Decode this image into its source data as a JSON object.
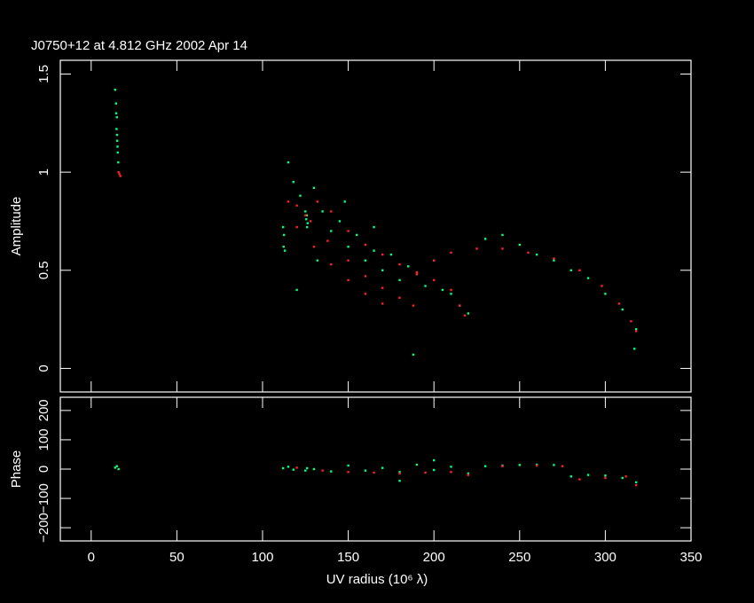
{
  "chart_data": [
    {
      "type": "scatter",
      "title": "J0750+12 at 4.812 GHz 2002 Apr 14",
      "y_label": "Amplitude",
      "ylim": [
        -0.12,
        1.57
      ],
      "yticks": [
        0,
        0.5,
        1,
        1.5
      ],
      "series": [
        {
          "color": "#00ff80",
          "x": [
            14,
            14.5,
            15,
            14.8,
            15.2,
            15.5,
            15.8,
            14.6,
            15.1,
            15.4,
            112,
            112.5,
            112.3,
            113,
            125,
            125.5,
            126,
            125.8,
            126.3,
            115,
            118,
            122,
            130,
            135,
            140,
            145,
            150,
            155,
            160,
            165,
            170,
            175,
            180,
            185,
            190,
            195,
            200,
            205,
            210,
            215,
            220,
            230,
            240,
            250,
            260,
            270,
            280,
            290,
            300,
            310,
            318,
            317,
            188,
            120,
            132,
            148,
            165
          ],
          "values": [
            1.42,
            1.35,
            1.28,
            1.22,
            1.16,
            1.1,
            1.05,
            1.3,
            1.19,
            1.13,
            0.72,
            0.68,
            0.62,
            0.6,
            0.8,
            0.76,
            0.72,
            0.78,
            0.74,
            1.05,
            0.95,
            0.88,
            0.92,
            0.8,
            0.7,
            0.75,
            0.62,
            0.68,
            0.55,
            0.6,
            0.5,
            0.58,
            0.45,
            0.52,
            0.48,
            0.42,
            0.55,
            0.4,
            0.38,
            0.32,
            0.28,
            0.66,
            0.68,
            0.63,
            0.58,
            0.55,
            0.5,
            0.46,
            0.38,
            0.3,
            0.2,
            0.1,
            0.07,
            0.4,
            0.55,
            0.85,
            0.72
          ]
        },
        {
          "color": "#ff2020",
          "x": [
            16,
            16.5,
            17,
            115,
            120,
            128,
            138,
            150,
            160,
            170,
            180,
            188,
            125,
            132,
            140,
            150,
            160,
            170,
            180,
            190,
            200,
            210,
            215,
            218,
            190,
            200,
            210,
            225,
            240,
            255,
            270,
            285,
            298,
            308,
            315,
            318,
            130,
            140,
            150,
            160,
            170,
            120
          ],
          "values": [
            1.0,
            0.99,
            0.98,
            0.85,
            0.83,
            0.75,
            0.65,
            0.55,
            0.47,
            0.41,
            0.36,
            0.32,
            0.78,
            0.85,
            0.8,
            0.7,
            0.63,
            0.58,
            0.53,
            0.49,
            0.45,
            0.4,
            0.32,
            0.27,
            0.48,
            0.55,
            0.59,
            0.61,
            0.61,
            0.59,
            0.56,
            0.5,
            0.42,
            0.33,
            0.24,
            0.19,
            0.62,
            0.53,
            0.45,
            0.38,
            0.33,
            0.72
          ]
        }
      ]
    },
    {
      "type": "scatter",
      "y_label": "Phase",
      "x_label": "UV radius  (10⁶ λ)",
      "xlim": [
        -18,
        350
      ],
      "xticks": [
        0,
        50,
        100,
        150,
        200,
        250,
        300,
        350
      ],
      "ylim": [
        -245,
        245
      ],
      "yticks": [
        {
          "value": -200,
          "label": "−200"
        },
        {
          "value": -100,
          "label": "−100"
        },
        0,
        100,
        200
      ],
      "series": [
        {
          "color": "#00ff80",
          "x": [
            14,
            15,
            16,
            112,
            115,
            118,
            125,
            126,
            130,
            140,
            150,
            160,
            170,
            180,
            190,
            200,
            210,
            220,
            230,
            240,
            250,
            260,
            270,
            280,
            290,
            300,
            310,
            318,
            180,
            200
          ],
          "values": [
            5,
            10,
            0,
            3,
            8,
            -2,
            -5,
            3,
            0,
            -8,
            12,
            -5,
            4,
            -10,
            15,
            -3,
            8,
            -15,
            10,
            12,
            14,
            15,
            14,
            -25,
            -20,
            -22,
            -30,
            -45,
            -40,
            30
          ]
        },
        {
          "color": "#ff2020",
          "x": [
            120,
            135,
            150,
            165,
            180,
            195,
            210,
            220,
            240,
            260,
            275,
            285,
            300,
            312,
            318
          ],
          "values": [
            5,
            -5,
            -10,
            -12,
            -15,
            -12,
            -10,
            -20,
            10,
            12,
            10,
            -35,
            -30,
            -25,
            -55
          ]
        }
      ]
    }
  ]
}
